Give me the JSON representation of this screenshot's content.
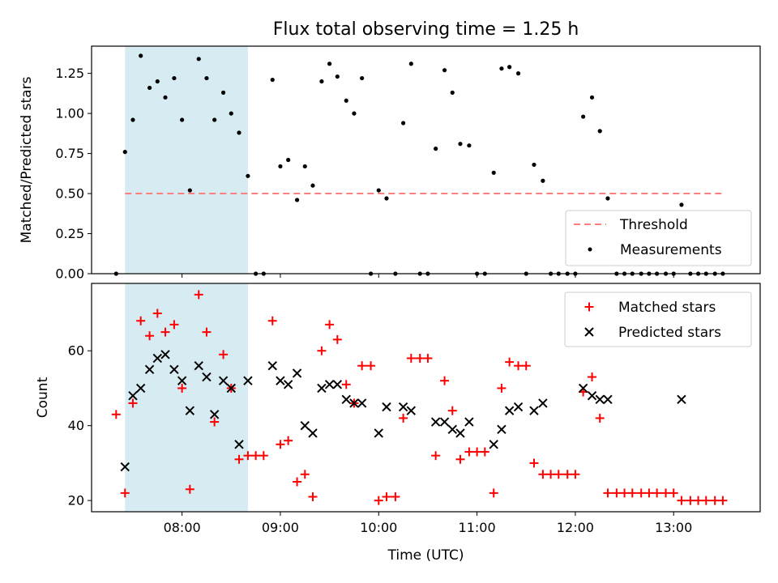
{
  "chart_data": [
    {
      "type": "scatter",
      "title": "Flux total observing time = 1.25 h",
      "xlabel": "",
      "ylabel": "Matched/Predicted stars",
      "xlim_hours": [
        7.08,
        13.88
      ],
      "ylim": [
        0,
        1.42
      ],
      "yticks": [
        0,
        0.25,
        0.5,
        0.75,
        1.0,
        1.25
      ],
      "ytick_labels": [
        "0.00",
        "0.25",
        "0.50",
        "0.75",
        "1.00",
        "1.25"
      ],
      "highlight_span_hours": [
        7.42,
        8.67
      ],
      "highlight_color": "#add8e6",
      "threshold": {
        "name": "Threshold",
        "value": 0.5,
        "x_range_hours": [
          7.42,
          13.5
        ],
        "color": "#ff7f7f"
      },
      "legend": [
        "Threshold",
        "Measurements"
      ],
      "legend_loc": "lower right",
      "series": [
        {
          "name": "Measurements",
          "color": "#000000",
          "points": [
            [
              7.33,
              0.0
            ],
            [
              7.42,
              0.76
            ],
            [
              7.5,
              0.96
            ],
            [
              7.58,
              1.36
            ],
            [
              7.67,
              1.16
            ],
            [
              7.75,
              1.2
            ],
            [
              7.83,
              1.1
            ],
            [
              7.92,
              1.22
            ],
            [
              8.0,
              0.96
            ],
            [
              8.08,
              0.52
            ],
            [
              8.17,
              1.34
            ],
            [
              8.25,
              1.22
            ],
            [
              8.33,
              0.96
            ],
            [
              8.42,
              1.13
            ],
            [
              8.5,
              1.0
            ],
            [
              8.58,
              0.88
            ],
            [
              8.67,
              0.61
            ],
            [
              8.75,
              0.0
            ],
            [
              8.83,
              0.0
            ],
            [
              8.92,
              1.21
            ],
            [
              9.0,
              0.67
            ],
            [
              9.08,
              0.71
            ],
            [
              9.17,
              0.46
            ],
            [
              9.25,
              0.67
            ],
            [
              9.33,
              0.55
            ],
            [
              9.42,
              1.2
            ],
            [
              9.5,
              1.31
            ],
            [
              9.58,
              1.23
            ],
            [
              9.67,
              1.08
            ],
            [
              9.75,
              1.0
            ],
            [
              9.83,
              1.22
            ],
            [
              9.92,
              0.0
            ],
            [
              10.0,
              0.52
            ],
            [
              10.08,
              0.47
            ],
            [
              10.17,
              0.0
            ],
            [
              10.25,
              0.94
            ],
            [
              10.33,
              1.31
            ],
            [
              10.42,
              0.0
            ],
            [
              10.5,
              0.0
            ],
            [
              10.58,
              0.78
            ],
            [
              10.67,
              1.27
            ],
            [
              10.75,
              1.13
            ],
            [
              10.83,
              0.81
            ],
            [
              10.92,
              0.8
            ],
            [
              11.0,
              0.0
            ],
            [
              11.08,
              0.0
            ],
            [
              11.17,
              0.63
            ],
            [
              11.25,
              1.28
            ],
            [
              11.33,
              1.29
            ],
            [
              11.42,
              1.25
            ],
            [
              11.5,
              0.0
            ],
            [
              11.58,
              0.68
            ],
            [
              11.67,
              0.58
            ],
            [
              11.75,
              0.0
            ],
            [
              11.83,
              0.0
            ],
            [
              11.92,
              0.0
            ],
            [
              12.0,
              0.0
            ],
            [
              12.08,
              0.98
            ],
            [
              12.17,
              1.1
            ],
            [
              12.25,
              0.89
            ],
            [
              12.33,
              0.47
            ],
            [
              12.42,
              0.0
            ],
            [
              12.5,
              0.0
            ],
            [
              12.58,
              0.0
            ],
            [
              12.67,
              0.0
            ],
            [
              12.75,
              0.0
            ],
            [
              12.83,
              0.0
            ],
            [
              12.92,
              0.0
            ],
            [
              13.0,
              0.0
            ],
            [
              13.08,
              0.43
            ],
            [
              13.17,
              0.0
            ],
            [
              13.25,
              0.0
            ],
            [
              13.33,
              0.0
            ],
            [
              13.42,
              0.0
            ],
            [
              13.5,
              0.0
            ]
          ]
        }
      ]
    },
    {
      "type": "scatter",
      "title": "",
      "xlabel": "Time (UTC)",
      "ylabel": "Count",
      "xlim_hours": [
        7.08,
        13.88
      ],
      "ylim": [
        17,
        78
      ],
      "yticks": [
        20,
        40,
        60
      ],
      "ytick_labels": [
        "20",
        "40",
        "60"
      ],
      "xticks_hours": [
        8,
        9,
        10,
        11,
        12,
        13
      ],
      "xtick_labels": [
        "08:00",
        "09:00",
        "10:00",
        "11:00",
        "12:00",
        "13:00"
      ],
      "highlight_span_hours": [
        7.42,
        8.67
      ],
      "highlight_color": "#add8e6",
      "legend": [
        "Matched stars",
        "Predicted stars"
      ],
      "legend_loc": "upper right",
      "series": [
        {
          "name": "Matched stars",
          "marker": "plus",
          "color": "#ff0000",
          "points": [
            [
              7.33,
              43
            ],
            [
              7.42,
              22
            ],
            [
              7.5,
              46
            ],
            [
              7.58,
              68
            ],
            [
              7.67,
              64
            ],
            [
              7.75,
              70
            ],
            [
              7.83,
              65
            ],
            [
              7.92,
              67
            ],
            [
              8.0,
              50
            ],
            [
              8.08,
              23
            ],
            [
              8.17,
              75
            ],
            [
              8.25,
              65
            ],
            [
              8.33,
              41
            ],
            [
              8.42,
              59
            ],
            [
              8.5,
              50
            ],
            [
              8.58,
              31
            ],
            [
              8.67,
              32
            ],
            [
              8.75,
              32
            ],
            [
              8.83,
              32
            ],
            [
              8.92,
              68
            ],
            [
              9.0,
              35
            ],
            [
              9.08,
              36
            ],
            [
              9.17,
              25
            ],
            [
              9.25,
              27
            ],
            [
              9.33,
              21
            ],
            [
              9.42,
              60
            ],
            [
              9.5,
              67
            ],
            [
              9.58,
              63
            ],
            [
              9.67,
              51
            ],
            [
              9.75,
              46
            ],
            [
              9.83,
              56
            ],
            [
              9.92,
              56
            ],
            [
              10.0,
              20
            ],
            [
              10.08,
              21
            ],
            [
              10.17,
              21
            ],
            [
              10.25,
              42
            ],
            [
              10.33,
              58
            ],
            [
              10.42,
              58
            ],
            [
              10.5,
              58
            ],
            [
              10.58,
              32
            ],
            [
              10.67,
              52
            ],
            [
              10.75,
              44
            ],
            [
              10.83,
              31
            ],
            [
              10.92,
              33
            ],
            [
              11.0,
              33
            ],
            [
              11.08,
              33
            ],
            [
              11.17,
              22
            ],
            [
              11.25,
              50
            ],
            [
              11.33,
              57
            ],
            [
              11.42,
              56
            ],
            [
              11.5,
              56
            ],
            [
              11.58,
              30
            ],
            [
              11.67,
              27
            ],
            [
              11.75,
              27
            ],
            [
              11.83,
              27
            ],
            [
              11.92,
              27
            ],
            [
              12.0,
              27
            ],
            [
              12.08,
              49
            ],
            [
              12.17,
              53
            ],
            [
              12.25,
              42
            ],
            [
              12.33,
              22
            ],
            [
              12.42,
              22
            ],
            [
              12.5,
              22
            ],
            [
              12.58,
              22
            ],
            [
              12.67,
              22
            ],
            [
              12.75,
              22
            ],
            [
              12.83,
              22
            ],
            [
              12.92,
              22
            ],
            [
              13.0,
              22
            ],
            [
              13.08,
              20
            ],
            [
              13.17,
              20
            ],
            [
              13.25,
              20
            ],
            [
              13.33,
              20
            ],
            [
              13.42,
              20
            ],
            [
              13.5,
              20
            ]
          ]
        },
        {
          "name": "Predicted stars",
          "marker": "x",
          "color": "#000000",
          "points": [
            [
              7.42,
              29
            ],
            [
              7.5,
              48
            ],
            [
              7.58,
              50
            ],
            [
              7.67,
              55
            ],
            [
              7.75,
              58
            ],
            [
              7.83,
              59
            ],
            [
              7.92,
              55
            ],
            [
              8.0,
              52
            ],
            [
              8.08,
              44
            ],
            [
              8.17,
              56
            ],
            [
              8.25,
              53
            ],
            [
              8.33,
              43
            ],
            [
              8.42,
              52
            ],
            [
              8.5,
              50
            ],
            [
              8.58,
              35
            ],
            [
              8.67,
              52
            ],
            [
              8.92,
              56
            ],
            [
              9.0,
              52
            ],
            [
              9.08,
              51
            ],
            [
              9.17,
              54
            ],
            [
              9.25,
              40
            ],
            [
              9.33,
              38
            ],
            [
              9.42,
              50
            ],
            [
              9.5,
              51
            ],
            [
              9.58,
              51
            ],
            [
              9.67,
              47
            ],
            [
              9.75,
              46
            ],
            [
              9.83,
              46
            ],
            [
              10.0,
              38
            ],
            [
              10.08,
              45
            ],
            [
              10.25,
              45
            ],
            [
              10.33,
              44
            ],
            [
              10.58,
              41
            ],
            [
              10.67,
              41
            ],
            [
              10.75,
              39
            ],
            [
              10.83,
              38
            ],
            [
              10.92,
              41
            ],
            [
              11.17,
              35
            ],
            [
              11.25,
              39
            ],
            [
              11.33,
              44
            ],
            [
              11.42,
              45
            ],
            [
              11.58,
              44
            ],
            [
              11.67,
              46
            ],
            [
              12.08,
              50
            ],
            [
              12.17,
              48
            ],
            [
              12.25,
              47
            ],
            [
              12.33,
              47
            ],
            [
              13.08,
              47
            ]
          ]
        }
      ]
    }
  ]
}
